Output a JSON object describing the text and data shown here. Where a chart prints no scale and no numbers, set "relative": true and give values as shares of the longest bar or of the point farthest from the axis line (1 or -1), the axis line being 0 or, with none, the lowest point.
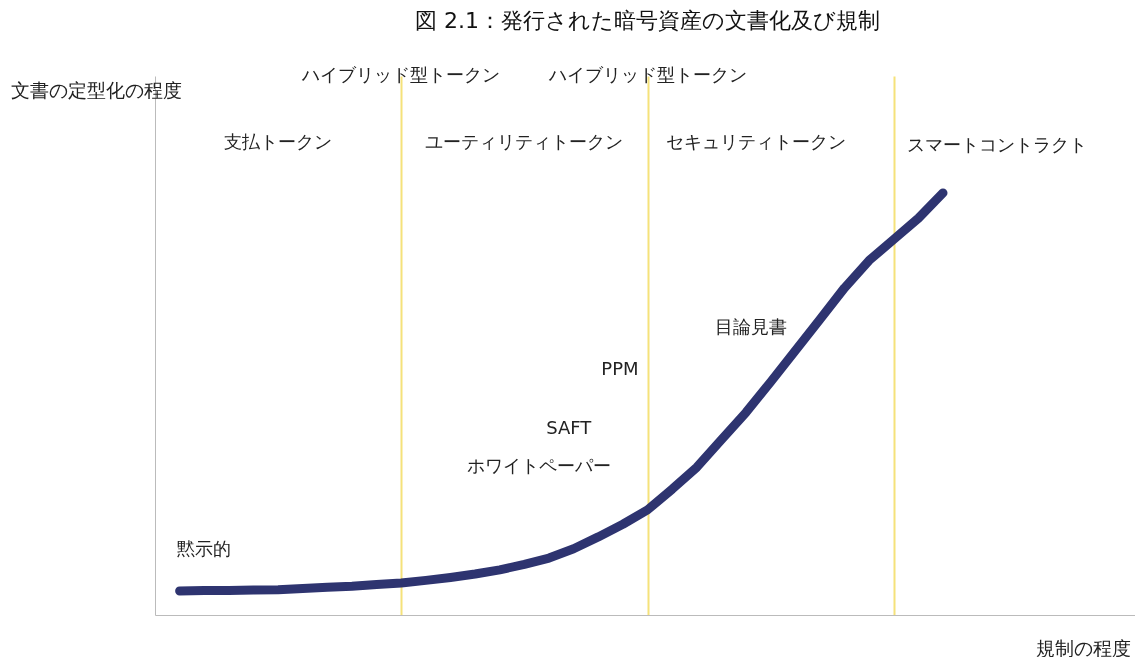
{
  "chart_data": {
    "type": "line",
    "title": "図 2.1：発行された暗号資産の文書化及び規制",
    "xlabel": "規制の程度",
    "ylabel": "文書の定型化の程度",
    "relative": true,
    "tick_labels": false,
    "grid": "x",
    "categories": [
      null,
      null,
      null,
      null,
      null,
      null,
      null,
      null,
      null,
      null,
      null,
      null,
      null,
      null,
      null,
      null,
      null,
      null,
      null,
      null,
      null,
      null,
      null,
      null,
      null,
      null,
      null,
      null,
      null,
      null,
      null,
      null,
      null,
      null,
      null,
      null,
      null,
      null,
      null,
      null,
      null
    ],
    "series": [
      {
        "color": "#2e3470",
        "values": [
          null,
          0.057,
          0.058,
          0.058,
          0.059,
          0.06,
          0.063,
          0.066,
          0.068,
          0.072,
          0.076,
          0.082,
          0.089,
          0.097,
          0.107,
          0.12,
          0.135,
          0.157,
          0.185,
          0.215,
          0.249,
          0.298,
          0.35,
          0.415,
          0.48,
          0.552,
          0.626,
          0.7,
          0.775,
          0.84,
          0.89,
          0.94,
          1.0,
          null,
          null,
          null,
          null,
          null,
          null,
          null,
          null
        ]
      }
    ],
    "annotations": [
      "黙示的",
      "ホワイトペーパー",
      "SAFT",
      "PPM",
      "目論見書",
      "支払トークン",
      "ユーティリティトークン",
      "セキュリティトークン",
      "スマートコントラクト",
      "ハイブリッド型トークン",
      "ハイブリッド型トークン"
    ]
  }
}
